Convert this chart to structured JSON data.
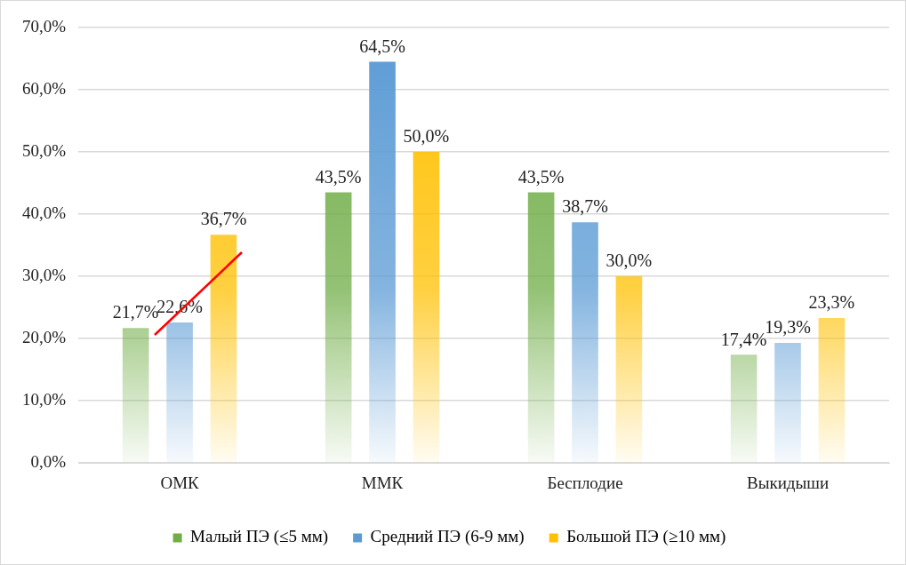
{
  "chart_data": {
    "type": "bar",
    "categories": [
      "ОМК",
      "ММК",
      "Бесплодие",
      "Выкидыши"
    ],
    "series": [
      {
        "name": "Малый ПЭ (≤5 мм)",
        "color": "#70ad47",
        "values": [
          21.7,
          43.5,
          43.5,
          17.4
        ],
        "value_labels": [
          "21,7%",
          "43,5%",
          "43,5%",
          "17,4%"
        ]
      },
      {
        "name": "Средний ПЭ (6-9 мм)",
        "color": "#5b9bd5",
        "values": [
          22.6,
          64.5,
          38.7,
          19.3
        ],
        "value_labels": [
          "22,6%",
          "64,5%",
          "38,7%",
          "19,3%"
        ]
      },
      {
        "name": "Большой ПЭ (≥10 мм)",
        "color": "#ffc000",
        "values": [
          36.7,
          50.0,
          30.0,
          23.3
        ],
        "value_labels": [
          "36,7%",
          "50,0%",
          "30,0%",
          "23,3%"
        ]
      }
    ],
    "ylim": [
      0,
      70
    ],
    "yticks": [
      {
        "value": 0,
        "label": "0,0%"
      },
      {
        "value": 10,
        "label": "10,0%"
      },
      {
        "value": 20,
        "label": "20,0%"
      },
      {
        "value": 30,
        "label": "30,0%"
      },
      {
        "value": 40,
        "label": "40,0%"
      },
      {
        "value": 50,
        "label": "50,0%"
      },
      {
        "value": 60,
        "label": "60,0%"
      },
      {
        "value": 70,
        "label": "70,0%"
      }
    ],
    "grid": "y",
    "legend": "bottom"
  }
}
